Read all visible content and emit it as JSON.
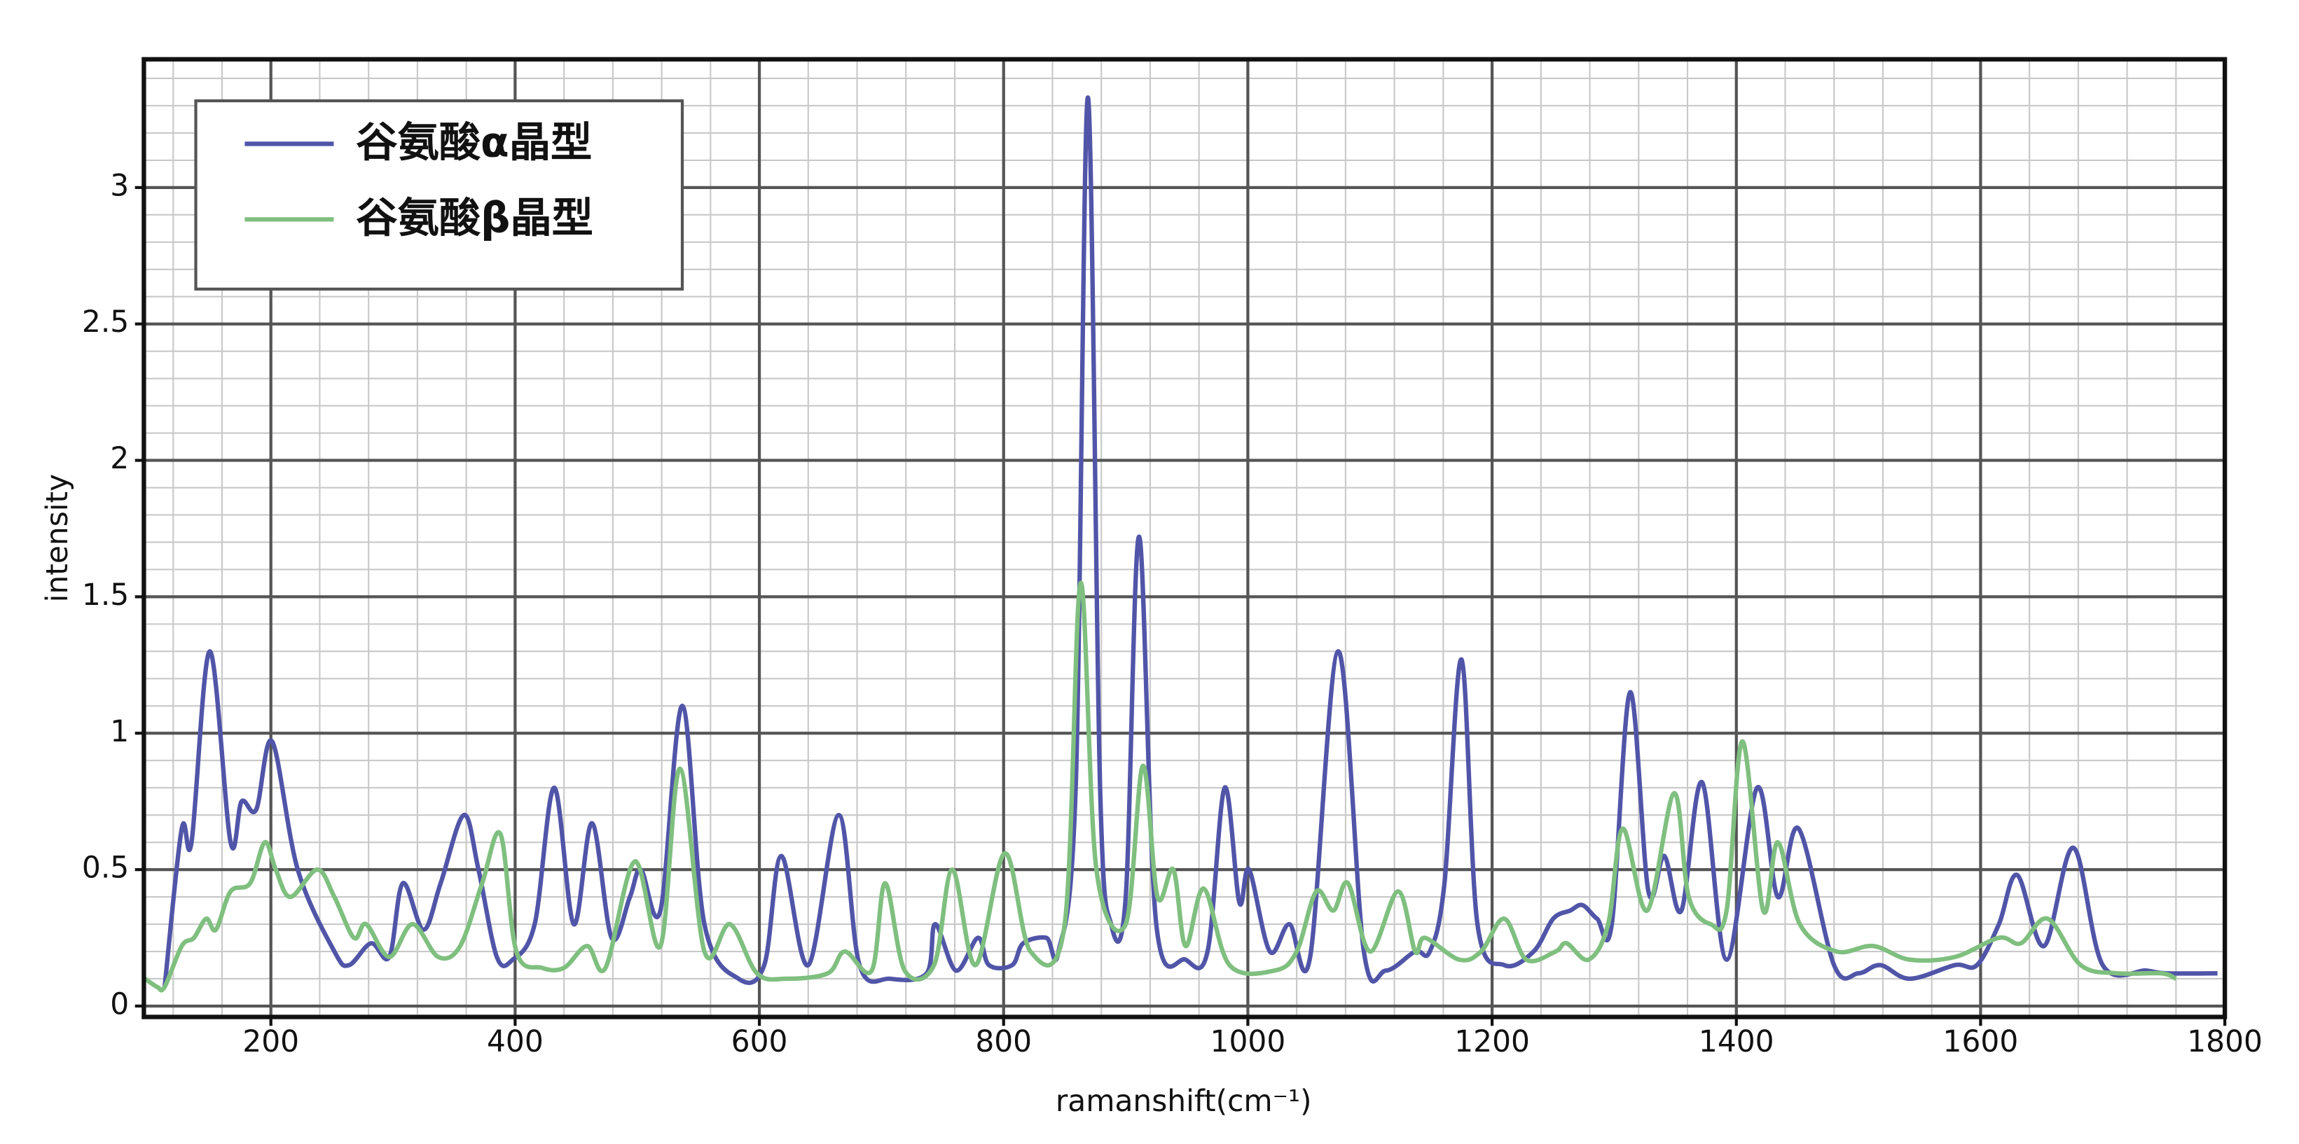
{
  "chart_data": {
    "type": "line",
    "x_label": "ramanshift(cm⁻¹)",
    "y_label": "intensity",
    "xlim": [
      96,
      1800
    ],
    "ylim": [
      -0.04,
      3.47
    ],
    "xticks": [
      200,
      400,
      600,
      800,
      1000,
      1200,
      1400,
      1600,
      1800
    ],
    "yticks": [
      0,
      0.5,
      1,
      1.5,
      2,
      2.5,
      3
    ],
    "grid": true,
    "minor_grid": true,
    "legend": "upper left",
    "series": [
      {
        "name": "谷氨酸α晶型",
        "color": "#5055a8",
        "x": [
          113,
          127,
          135,
          150,
          167,
          176,
          188,
          201,
          222,
          252,
          264,
          282,
          297,
          308,
          325,
          339,
          358,
          370,
          385,
          398,
          416,
          432,
          448,
          463,
          479,
          494,
          503,
          519,
          537,
          555,
          583,
          604,
          618,
          640,
          665,
          682,
          707,
          737,
          744,
          761,
          779,
          788,
          807,
          816,
          835,
          845,
          859,
          869,
          879,
          888,
          900,
          911,
          925,
          949,
          967,
          981,
          993,
          1001,
          1018,
          1034,
          1051,
          1074,
          1095,
          1113,
          1137,
          1149,
          1161,
          1175,
          1188,
          1210,
          1234,
          1250,
          1264,
          1274,
          1286,
          1298,
          1313,
          1328,
          1341,
          1355,
          1372,
          1392,
          1417,
          1434,
          1451,
          1480,
          1500,
          1518,
          1542,
          1579,
          1597,
          1615,
          1630,
          1652,
          1676,
          1700,
          1736,
          1752,
          1794
        ],
        "values": [
          0.07,
          0.65,
          0.6,
          1.3,
          0.6,
          0.75,
          0.72,
          0.97,
          0.5,
          0.2,
          0.15,
          0.23,
          0.18,
          0.45,
          0.28,
          0.45,
          0.7,
          0.5,
          0.18,
          0.17,
          0.3,
          0.8,
          0.3,
          0.67,
          0.25,
          0.4,
          0.5,
          0.35,
          1.1,
          0.3,
          0.1,
          0.15,
          0.55,
          0.15,
          0.7,
          0.15,
          0.1,
          0.12,
          0.3,
          0.13,
          0.25,
          0.15,
          0.15,
          0.23,
          0.25,
          0.2,
          0.8,
          3.33,
          0.8,
          0.3,
          0.4,
          1.72,
          0.3,
          0.17,
          0.2,
          0.8,
          0.38,
          0.5,
          0.2,
          0.3,
          0.18,
          1.3,
          0.2,
          0.13,
          0.2,
          0.2,
          0.45,
          1.27,
          0.3,
          0.15,
          0.2,
          0.32,
          0.35,
          0.37,
          0.32,
          0.3,
          1.15,
          0.42,
          0.55,
          0.35,
          0.82,
          0.17,
          0.8,
          0.4,
          0.65,
          0.15,
          0.12,
          0.15,
          0.1,
          0.15,
          0.15,
          0.3,
          0.48,
          0.22,
          0.58,
          0.15,
          0.13,
          0.12,
          0.12
        ]
      },
      {
        "name": "谷氨酸β晶型",
        "color": "#7fbf7f",
        "x": [
          97,
          107,
          113,
          127,
          137,
          147,
          155,
          167,
          183,
          195,
          204,
          216,
          238,
          252,
          268,
          278,
          297,
          316,
          337,
          355,
          373,
          388,
          401,
          422,
          440,
          459,
          474,
          498,
          519,
          535,
          555,
          576,
          598,
          622,
          656,
          670,
          692,
          703,
          719,
          743,
          758,
          777,
          801,
          822,
          850,
          863,
          876,
          900,
          914,
          926,
          939,
          949,
          964,
          985,
          1022,
          1040,
          1056,
          1070,
          1082,
          1100,
          1123,
          1137,
          1145,
          1173,
          1191,
          1210,
          1228,
          1252,
          1261,
          1279,
          1295,
          1307,
          1327,
          1349,
          1361,
          1379,
          1392,
          1405,
          1422,
          1434,
          1452,
          1482,
          1512,
          1542,
          1579,
          1615,
          1633,
          1655,
          1682,
          1712,
          1748,
          1760
        ],
        "values": [
          0.1,
          0.07,
          0.07,
          0.22,
          0.25,
          0.32,
          0.28,
          0.42,
          0.45,
          0.6,
          0.5,
          0.4,
          0.5,
          0.4,
          0.25,
          0.3,
          0.18,
          0.3,
          0.18,
          0.22,
          0.45,
          0.63,
          0.2,
          0.14,
          0.14,
          0.22,
          0.14,
          0.53,
          0.22,
          0.87,
          0.2,
          0.3,
          0.12,
          0.1,
          0.12,
          0.2,
          0.13,
          0.45,
          0.13,
          0.15,
          0.5,
          0.15,
          0.56,
          0.2,
          0.3,
          1.55,
          0.5,
          0.3,
          0.88,
          0.4,
          0.5,
          0.22,
          0.43,
          0.15,
          0.13,
          0.2,
          0.42,
          0.35,
          0.45,
          0.2,
          0.42,
          0.2,
          0.25,
          0.17,
          0.2,
          0.32,
          0.17,
          0.2,
          0.23,
          0.17,
          0.3,
          0.65,
          0.35,
          0.78,
          0.4,
          0.3,
          0.35,
          0.97,
          0.35,
          0.6,
          0.3,
          0.2,
          0.22,
          0.17,
          0.18,
          0.25,
          0.23,
          0.32,
          0.15,
          0.12,
          0.12,
          0.1
        ]
      }
    ]
  }
}
